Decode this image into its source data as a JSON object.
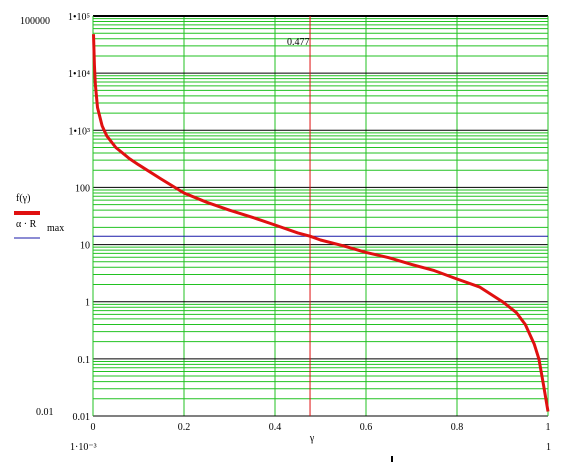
{
  "chart_data": {
    "type": "line",
    "title": "",
    "xlabel": "γ",
    "ylabel": "",
    "xlim": [
      0.001,
      1
    ],
    "ylim": [
      0.01,
      100000
    ],
    "yscale": "log",
    "grid": true,
    "x_ticks": [
      "0",
      "0.2",
      "0.4",
      "0.6",
      "0.8",
      "1"
    ],
    "x_ticks_extra": [
      "1·10⁻³",
      "1"
    ],
    "y_ticks_outer": [
      "100000",
      "0.01"
    ],
    "y_ticks": [
      {
        "value": 100000,
        "label": "1•10⁵"
      },
      {
        "value": 10000,
        "label": "1•10⁴"
      },
      {
        "value": 1000,
        "label": "1•10³"
      },
      {
        "value": 100,
        "label": "100"
      },
      {
        "value": 10,
        "label": "10"
      },
      {
        "value": 1,
        "label": "1"
      },
      {
        "value": 0.1,
        "label": "0.1"
      },
      {
        "value": 0.01,
        "label": "0.01"
      }
    ],
    "annotation": {
      "text": "0.477",
      "x": 0.477
    },
    "legend_position": "left",
    "series": [
      {
        "name": "f(γ)",
        "color": "#e01010",
        "style": "solid-thick",
        "points": [
          [
            0.001,
            48000
          ],
          [
            0.003,
            14000
          ],
          [
            0.005,
            6500
          ],
          [
            0.01,
            2500
          ],
          [
            0.02,
            1200
          ],
          [
            0.03,
            800
          ],
          [
            0.05,
            500
          ],
          [
            0.08,
            320
          ],
          [
            0.1,
            250
          ],
          [
            0.15,
            140
          ],
          [
            0.2,
            80
          ],
          [
            0.25,
            55
          ],
          [
            0.3,
            40
          ],
          [
            0.35,
            30
          ],
          [
            0.4,
            22
          ],
          [
            0.45,
            16
          ],
          [
            0.477,
            14
          ],
          [
            0.5,
            12
          ],
          [
            0.55,
            9.5
          ],
          [
            0.6,
            7.3
          ],
          [
            0.65,
            5.9
          ],
          [
            0.7,
            4.5
          ],
          [
            0.75,
            3.5
          ],
          [
            0.8,
            2.5
          ],
          [
            0.85,
            1.8
          ],
          [
            0.9,
            1.0
          ],
          [
            0.93,
            0.65
          ],
          [
            0.95,
            0.4
          ],
          [
            0.97,
            0.18
          ],
          [
            0.98,
            0.1
          ],
          [
            0.99,
            0.035
          ],
          [
            1.0,
            0.012
          ]
        ]
      },
      {
        "name": "α·R max",
        "legend_label_main": "α · R",
        "legend_label_sub": "max",
        "color": "#1a1aa8",
        "style": "solid-thin",
        "value": 14
      }
    ],
    "markers": {
      "vertical_line_x": 0.477,
      "vertical_line_color": "#e01010"
    }
  },
  "colors": {
    "grid_major": "#000000",
    "grid_minor": "#22c222",
    "background": "#ffffff"
  }
}
